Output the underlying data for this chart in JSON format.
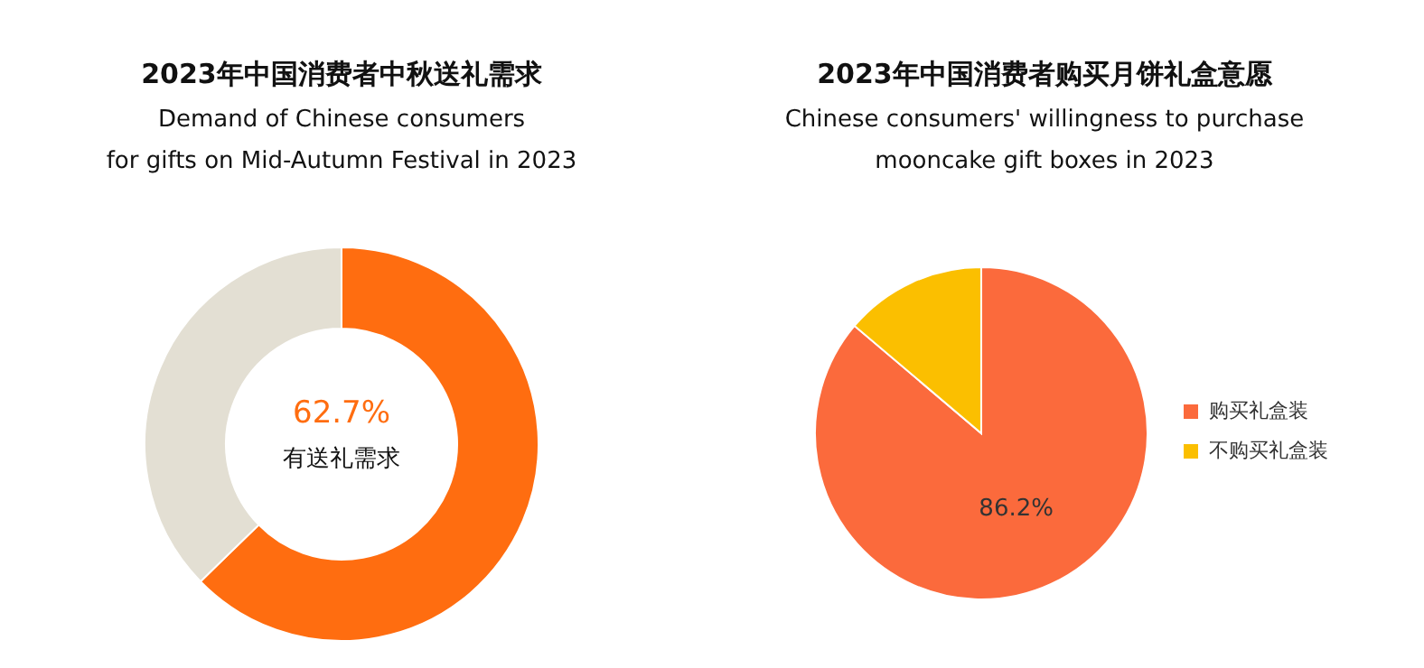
{
  "chart_data": [
    {
      "type": "donut",
      "title": "2023年中国消费者中秋送礼需求",
      "subtitle": "Demand of Chinese consumers\nfor gifts on Mid-Autumn Festival in 2023",
      "categories": [
        "有送礼需求",
        null
      ],
      "values": [
        62.7,
        37.3
      ],
      "colors": [
        "#ff6d10",
        "#e3dfd3"
      ],
      "value_labels": [
        "62.7%",
        null
      ],
      "legend": false
    },
    {
      "type": "pie",
      "title": "2023年中国消费者购买月饼礼盒意愿",
      "subtitle": "Chinese consumers' willingness to purchase\nmooncake gift boxes in 2023",
      "categories": [
        "购买礼盒装",
        "不购买礼盒装"
      ],
      "values": [
        86.2,
        13.8
      ],
      "colors": [
        "#fb6a3c",
        "#fbbf00"
      ],
      "value_labels": [
        "86.2%",
        null
      ],
      "legend": "right"
    }
  ]
}
